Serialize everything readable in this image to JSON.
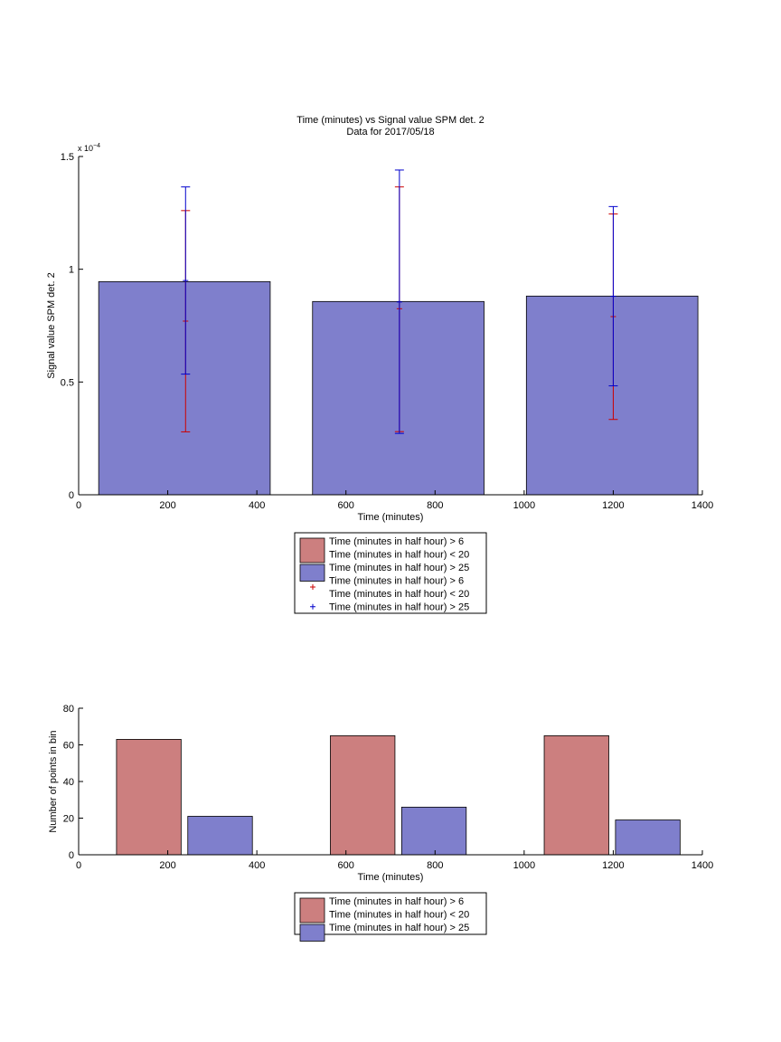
{
  "chart_data": [
    {
      "type": "bar",
      "title": "Time (minutes) vs Signal value SPM det. 2",
      "subtitle": "Data for 2017/05/18",
      "xlabel": "Time (minutes)",
      "ylabel": "Signal value SPM det. 2",
      "exponent_label": "x 10",
      "exponent_power": "−4",
      "xlim": [
        0,
        1400
      ],
      "ylim": [
        0,
        1.5
      ],
      "xticks": [
        0,
        200,
        400,
        600,
        800,
        1000,
        1200,
        1400
      ],
      "xtick_labels": [
        "0",
        "200",
        "400",
        "600",
        "800",
        "1000",
        "1200",
        "1400"
      ],
      "yticks": [
        0,
        0.5,
        1,
        1.5
      ],
      "ytick_labels": [
        "0",
        "0.5",
        "1",
        "1.5"
      ],
      "grid": false,
      "bars": [
        {
          "x_start": 45,
          "x_end": 430,
          "value": 0.945
        },
        {
          "x_start": 525,
          "x_end": 910,
          "value": 0.857
        },
        {
          "x_start": 1005,
          "x_end": 1390,
          "value": 0.881
        }
      ],
      "error_series": [
        {
          "color": "#cc0000",
          "points": [
            {
              "x": 240,
              "low": 0.279,
              "mid": 0.77,
              "high": 1.26
            },
            {
              "x": 720,
              "low": 0.28,
              "mid": 0.825,
              "high": 1.365
            },
            {
              "x": 1200,
              "low": 0.334,
              "mid": 0.79,
              "high": 1.245
            }
          ]
        },
        {
          "color": "#0000cc",
          "points": [
            {
              "x": 240,
              "low": 0.535,
              "mid": 0.95,
              "high": 1.365
            },
            {
              "x": 720,
              "low": 0.272,
              "mid": 0.855,
              "high": 1.44
            },
            {
              "x": 1200,
              "low": 0.483,
              "mid": 0.88,
              "high": 1.278
            }
          ]
        }
      ],
      "legend": {
        "placement": "below",
        "entries": [
          {
            "kind": "patch",
            "color": "#cc7f7f",
            "lines": [
              "Time (minutes in half hour) > 6",
              "Time (minutes in half hour) < 20"
            ]
          },
          {
            "kind": "patch",
            "color": "#7f7fcc",
            "lines": [
              "Time (minutes in half hour) > 25"
            ]
          },
          {
            "kind": "marker",
            "color": "#cc0000",
            "lines": [
              "Time (minutes in half hour) > 6",
              "Time (minutes in half hour) < 20"
            ]
          },
          {
            "kind": "marker",
            "color": "#0000cc",
            "lines": [
              "Time (minutes in half hour) > 25"
            ]
          }
        ]
      }
    },
    {
      "type": "bar",
      "xlabel": "Time (minutes)",
      "ylabel": "Number of points in bin",
      "xlim": [
        0,
        1400
      ],
      "ylim": [
        0,
        80
      ],
      "xticks": [
        0,
        200,
        400,
        600,
        800,
        1000,
        1200,
        1400
      ],
      "xtick_labels": [
        "0",
        "200",
        "400",
        "600",
        "800",
        "1000",
        "1200",
        "1400"
      ],
      "yticks": [
        0,
        20,
        40,
        60,
        80
      ],
      "ytick_labels": [
        "0",
        "20",
        "40",
        "60",
        "80"
      ],
      "grid": false,
      "series": [
        {
          "color": "#cc7f7f",
          "bars": [
            {
              "x_start": 85,
              "x_end": 230,
              "value": 63
            },
            {
              "x_start": 565,
              "x_end": 710,
              "value": 65
            },
            {
              "x_start": 1045,
              "x_end": 1190,
              "value": 65
            }
          ]
        },
        {
          "color": "#7f7fcc",
          "bars": [
            {
              "x_start": 245,
              "x_end": 390,
              "value": 21
            },
            {
              "x_start": 725,
              "x_end": 870,
              "value": 26
            },
            {
              "x_start": 1205,
              "x_end": 1350,
              "value": 19
            }
          ]
        }
      ],
      "legend": {
        "placement": "below",
        "entries": [
          {
            "kind": "patch",
            "color": "#cc7f7f",
            "lines": [
              "Time (minutes in half hour) > 6",
              "Time (minutes in half hour) < 20"
            ]
          },
          {
            "kind": "patch",
            "color": "#7f7fcc",
            "lines": [
              "Time (minutes in half hour) > 25"
            ]
          }
        ]
      }
    }
  ]
}
